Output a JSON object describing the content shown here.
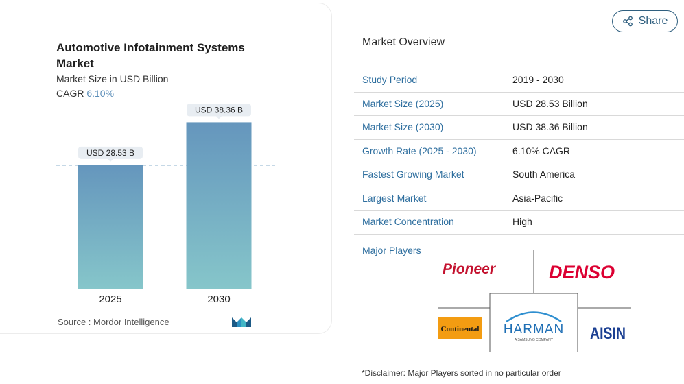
{
  "chart_data": {
    "type": "bar",
    "title": "Automotive Infotainment Systems Market",
    "subtitle": "Market Size in USD Billion",
    "cagr_label": "CAGR",
    "cagr_value": "6.10%",
    "categories": [
      "2025",
      "2030"
    ],
    "values": [
      28.53,
      38.36
    ],
    "data_labels": [
      "USD 28.53 B",
      "USD 38.36 B"
    ],
    "xlabel": "",
    "ylabel": "",
    "ylim": [
      0,
      40
    ],
    "grid": false,
    "reference_line": 28.53,
    "colors": {
      "bar_top": "#6596bd",
      "bar_bottom": "#86c6ca",
      "label_bg": "#e8edf2",
      "dash": "#6596bd"
    }
  },
  "source": "Source :  Mordor Intelligence",
  "share": {
    "label": "Share",
    "icon": "share-icon"
  },
  "overview": {
    "title": "Market Overview",
    "rows": [
      {
        "key": "Study Period",
        "value": "2019 - 2030"
      },
      {
        "key": "Market Size (2025)",
        "value": "USD 28.53 Billion"
      },
      {
        "key": "Market Size (2030)",
        "value": "USD 38.36 Billion"
      },
      {
        "key": "Growth Rate (2025 - 2030)",
        "value": "6.10% CAGR"
      },
      {
        "key": "Fastest Growing Market",
        "value": "South America"
      },
      {
        "key": "Largest Market",
        "value": "Asia-Pacific"
      },
      {
        "key": "Market Concentration",
        "value": "High"
      }
    ]
  },
  "players": {
    "label": "Major Players",
    "logos": [
      "Pioneer",
      "DENSO",
      "Continental",
      "HARMAN",
      "AISIN"
    ],
    "harman_tagline": "A SAMSUNG COMPANY"
  },
  "disclaimer": "*Disclaimer: Major Players sorted in no particular order"
}
